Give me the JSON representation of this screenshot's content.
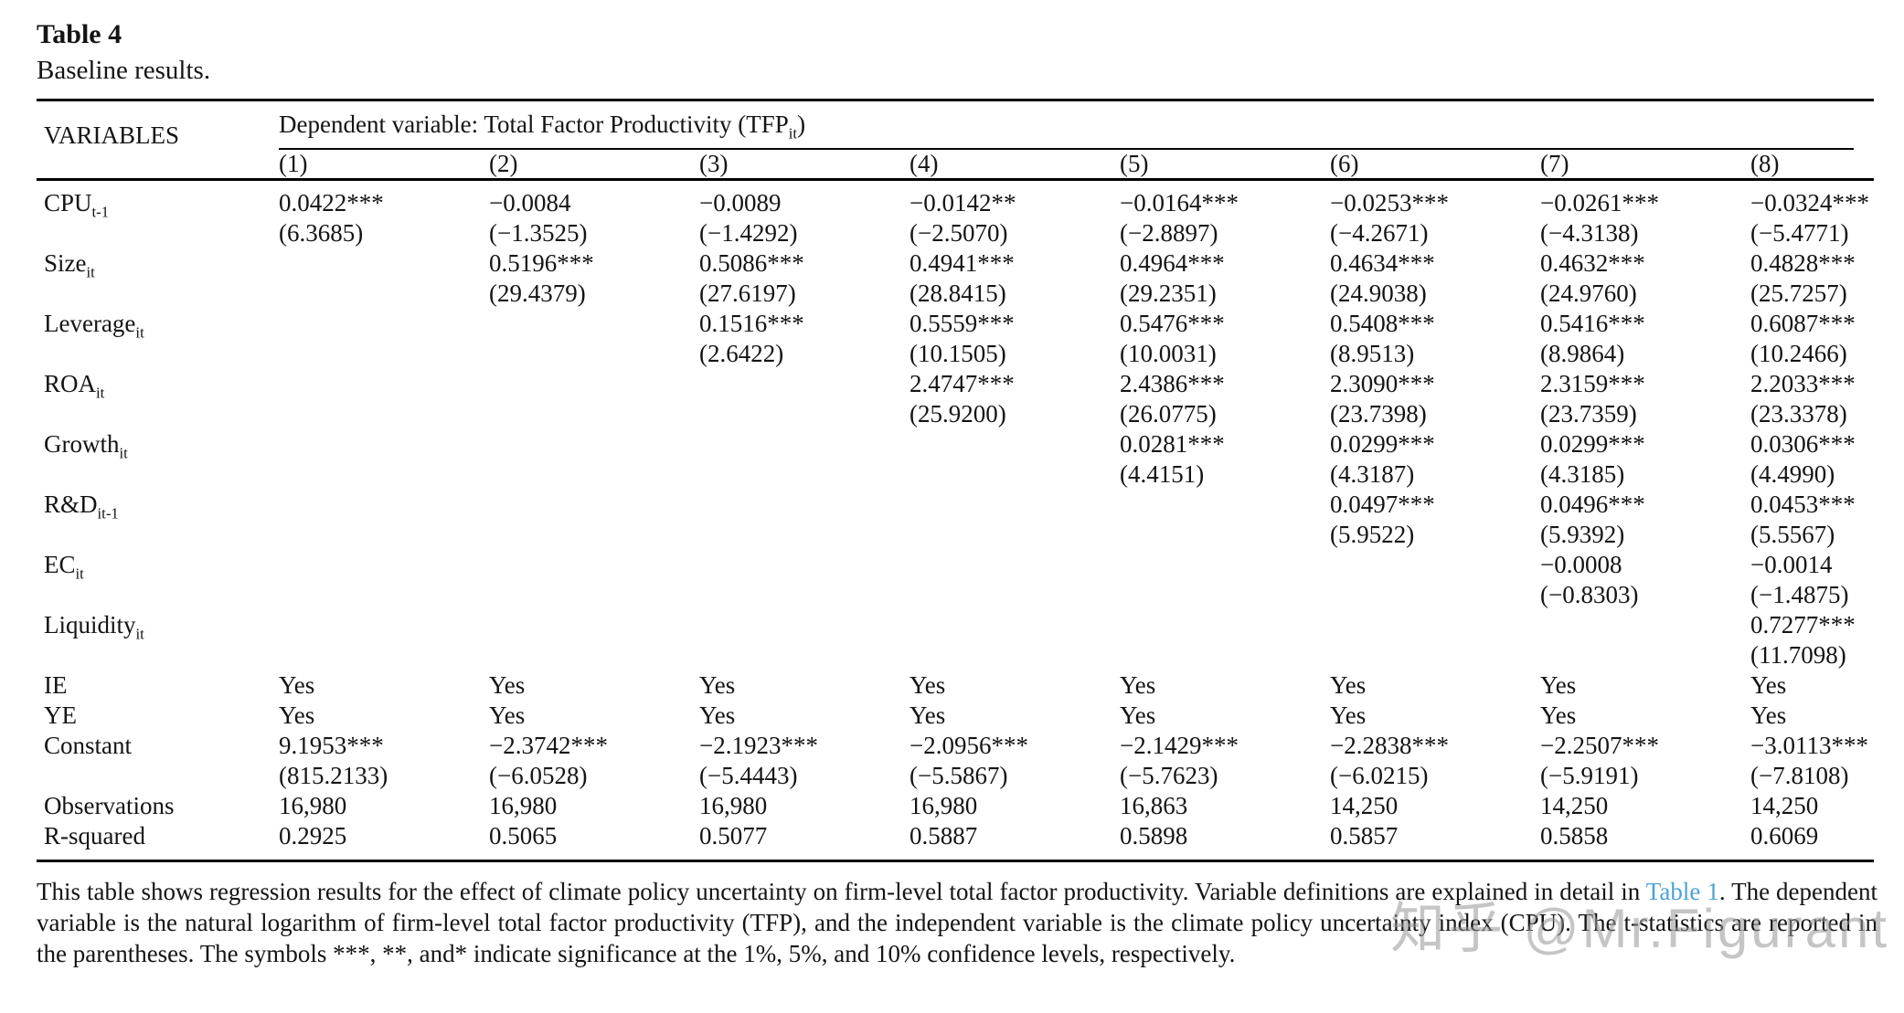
{
  "caption": {
    "title": "Table 4",
    "subtitle": "Baseline results."
  },
  "header": {
    "variables_label": "VARIABLES",
    "dep_prefix": "Dependent variable: Total Factor Productivity (TFP",
    "dep_sub": "it",
    "dep_suffix": ")"
  },
  "table": {
    "columns": [
      "(1)",
      "(2)",
      "(3)",
      "(4)",
      "(5)",
      "(6)",
      "(7)",
      "(8)"
    ],
    "rows": [
      {
        "label": "CPU",
        "sub": "t-1",
        "coefs": [
          "0.0422***",
          "−0.0084",
          "−0.0089",
          "−0.0142**",
          "−0.0164***",
          "−0.0253***",
          "−0.0261***",
          "−0.0324***"
        ],
        "tstats": [
          "(6.3685)",
          "(−1.3525)",
          "(−1.4292)",
          "(−2.5070)",
          "(−2.8897)",
          "(−4.2671)",
          "(−4.3138)",
          "(−5.4771)"
        ]
      },
      {
        "label": "Size",
        "sub": "it",
        "coefs": [
          "",
          "0.5196***",
          "0.5086***",
          "0.4941***",
          "0.4964***",
          "0.4634***",
          "0.4632***",
          "0.4828***"
        ],
        "tstats": [
          "",
          "(29.4379)",
          "(27.6197)",
          "(28.8415)",
          "(29.2351)",
          "(24.9038)",
          "(24.9760)",
          "(25.7257)"
        ]
      },
      {
        "label": "Leverage",
        "sub": "it",
        "coefs": [
          "",
          "",
          "0.1516***",
          "0.5559***",
          "0.5476***",
          "0.5408***",
          "0.5416***",
          "0.6087***"
        ],
        "tstats": [
          "",
          "",
          "(2.6422)",
          "(10.1505)",
          "(10.0031)",
          "(8.9513)",
          "(8.9864)",
          "(10.2466)"
        ]
      },
      {
        "label": "ROA",
        "sub": "it",
        "coefs": [
          "",
          "",
          "",
          "2.4747***",
          "2.4386***",
          "2.3090***",
          "2.3159***",
          "2.2033***"
        ],
        "tstats": [
          "",
          "",
          "",
          "(25.9200)",
          "(26.0775)",
          "(23.7398)",
          "(23.7359)",
          "(23.3378)"
        ]
      },
      {
        "label": "Growth",
        "sub": "it",
        "coefs": [
          "",
          "",
          "",
          "",
          "0.0281***",
          "0.0299***",
          "0.0299***",
          "0.0306***"
        ],
        "tstats": [
          "",
          "",
          "",
          "",
          "(4.4151)",
          "(4.3187)",
          "(4.3185)",
          "(4.4990)"
        ]
      },
      {
        "label": "R&D",
        "sub": "it-1",
        "coefs": [
          "",
          "",
          "",
          "",
          "",
          "0.0497***",
          "0.0496***",
          "0.0453***"
        ],
        "tstats": [
          "",
          "",
          "",
          "",
          "",
          "(5.9522)",
          "(5.9392)",
          "(5.5567)"
        ]
      },
      {
        "label": "EC",
        "sub": "it",
        "coefs": [
          "",
          "",
          "",
          "",
          "",
          "",
          "−0.0008",
          "−0.0014"
        ],
        "tstats": [
          "",
          "",
          "",
          "",
          "",
          "",
          "(−0.8303)",
          "(−1.4875)"
        ]
      },
      {
        "label": "Liquidity",
        "sub": "it",
        "coefs": [
          "",
          "",
          "",
          "",
          "",
          "",
          "",
          "0.7277***"
        ],
        "tstats": [
          "",
          "",
          "",
          "",
          "",
          "",
          "",
          "(11.7098)"
        ]
      },
      {
        "label": "IE",
        "sub": "",
        "coefs": [
          "Yes",
          "Yes",
          "Yes",
          "Yes",
          "Yes",
          "Yes",
          "Yes",
          "Yes"
        ],
        "tstats": null
      },
      {
        "label": "YE",
        "sub": "",
        "coefs": [
          "Yes",
          "Yes",
          "Yes",
          "Yes",
          "Yes",
          "Yes",
          "Yes",
          "Yes"
        ],
        "tstats": null
      },
      {
        "label": "Constant",
        "sub": "",
        "coefs": [
          "9.1953***",
          "−2.3742***",
          "−2.1923***",
          "−2.0956***",
          "−2.1429***",
          "−2.2838***",
          "−2.2507***",
          "−3.0113***"
        ],
        "tstats": [
          "(815.2133)",
          "(−6.0528)",
          "(−5.4443)",
          "(−5.5867)",
          "(−5.7623)",
          "(−6.0215)",
          "(−5.9191)",
          "(−7.8108)"
        ]
      },
      {
        "label": "Observations",
        "sub": "",
        "coefs": [
          "16,980",
          "16,980",
          "16,980",
          "16,980",
          "16,863",
          "14,250",
          "14,250",
          "14,250"
        ],
        "tstats": null
      },
      {
        "label": "R-squared",
        "sub": "",
        "coefs": [
          "0.2925",
          "0.5065",
          "0.5077",
          "0.5887",
          "0.5898",
          "0.5857",
          "0.5858",
          "0.6069"
        ],
        "tstats": null
      }
    ]
  },
  "notes": {
    "part1": "This table shows regression results for the effect of climate policy uncertainty on firm-level total factor productivity. Variable definitions are explained in detail in ",
    "link_text": "Table 1",
    "part2": ". The dependent variable is the natural logarithm of firm-level total factor productivity (TFP), and the independent variable is the climate policy uncertainty index (CPU). The t-statistics are reported in the parentheses. The symbols ***, **, and* indicate significance at the 1%, 5%, and 10% confidence levels, respectively."
  },
  "watermark": {
    "text": "知乎 @Mr.Figurant"
  },
  "colors": {
    "text": "#141414",
    "rule": "#000000",
    "link": "#4da3d4",
    "watermark": "#969696"
  }
}
